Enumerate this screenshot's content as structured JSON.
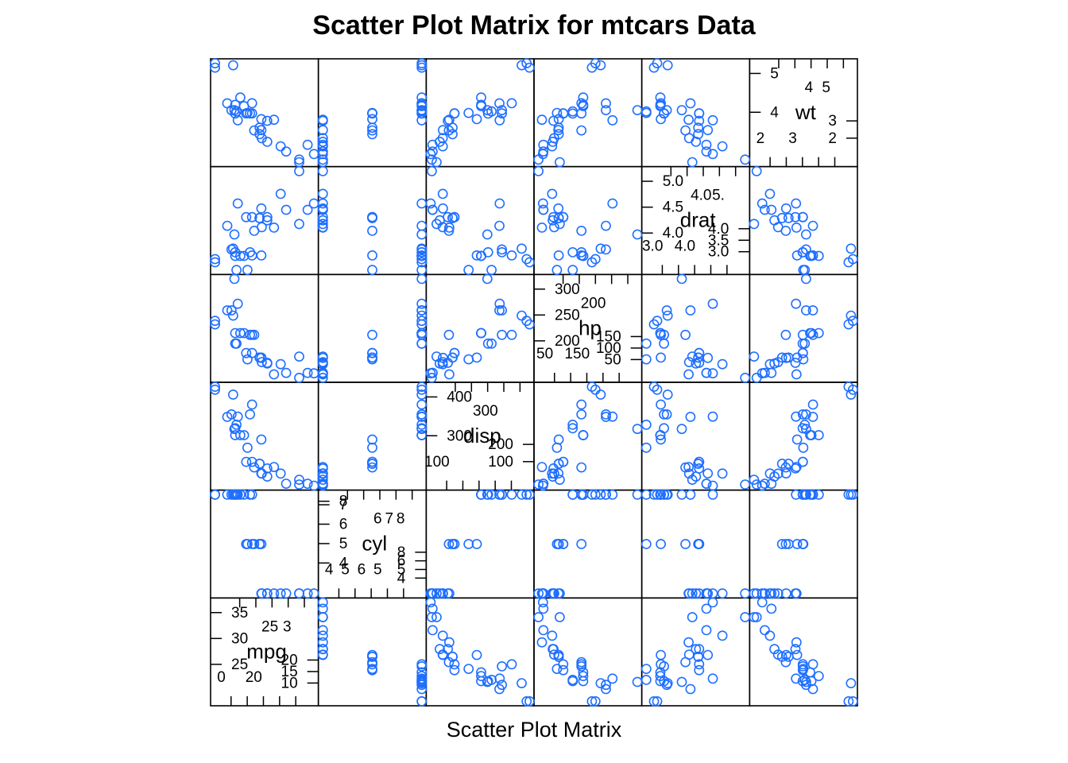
{
  "chart_data": {
    "type": "scatter",
    "matrix_type": "scatter-plot-matrix",
    "title": "Scatter Plot Matrix for mtcars Data",
    "xlabel": "Scatter Plot Matrix",
    "ylabel": "",
    "point_color": "#1f6fff",
    "grid": false,
    "legend": "none",
    "variables": [
      "mpg",
      "cyl",
      "disp",
      "hp",
      "drat",
      "wt"
    ],
    "variable_ranges": {
      "mpg": [
        10.4,
        33.9
      ],
      "cyl": [
        4,
        8
      ],
      "disp": [
        71.1,
        472
      ],
      "hp": [
        52,
        335
      ],
      "drat": [
        2.76,
        4.93
      ],
      "wt": [
        1.513,
        5.424
      ]
    },
    "diagonal_ticks": {
      "mpg": {
        "left": [
          "35",
          "30",
          "25"
        ],
        "bottom": [
          "20",
          "15",
          "10"
        ],
        "top_inner": [
          "25",
          "3"
        ],
        "bottom_inner": [
          "0",
          "20"
        ]
      },
      "cyl": {
        "top": [
          "8"
        ],
        "left": [
          "7",
          "6",
          "5",
          "4"
        ],
        "top_inner": [
          "6",
          "7",
          "8"
        ],
        "right": [
          "8",
          "6",
          "5",
          "4"
        ],
        "bottom_inner": [
          "4",
          "5",
          "6",
          "5"
        ]
      },
      "disp": {
        "left": [
          "400",
          "300"
        ],
        "top_inner": [
          "300"
        ],
        "right": [
          "200",
          "100"
        ],
        "bottom_inner": [
          "100"
        ]
      },
      "hp": {
        "left": [
          "300",
          "250",
          "200"
        ],
        "top_inner": [
          "200"
        ],
        "right": [
          "150",
          "100",
          "50"
        ],
        "bottom_inner": [
          "50",
          "150"
        ]
      },
      "drat": {
        "left": [
          "5.0",
          "4.5",
          "4.0"
        ],
        "top_inner": [
          "4.0",
          "5."
        ],
        "right": [
          "4.0",
          "3.5",
          "3.0"
        ],
        "bottom_inner": [
          "3.0",
          "4.0"
        ]
      },
      "wt": {
        "left": [
          "5",
          "4"
        ],
        "top_inner": [
          "4",
          "5"
        ],
        "right": [
          "3",
          "2"
        ],
        "bottom_inner": [
          "2",
          "3"
        ]
      }
    },
    "observations": [
      {
        "mpg": 21.0,
        "cyl": 6,
        "disp": 160.0,
        "hp": 110,
        "drat": 3.9,
        "wt": 2.62
      },
      {
        "mpg": 21.0,
        "cyl": 6,
        "disp": 160.0,
        "hp": 110,
        "drat": 3.9,
        "wt": 2.875
      },
      {
        "mpg": 22.8,
        "cyl": 4,
        "disp": 108.0,
        "hp": 93,
        "drat": 3.85,
        "wt": 2.32
      },
      {
        "mpg": 21.4,
        "cyl": 6,
        "disp": 258.0,
        "hp": 110,
        "drat": 3.08,
        "wt": 3.215
      },
      {
        "mpg": 18.7,
        "cyl": 8,
        "disp": 360.0,
        "hp": 175,
        "drat": 3.15,
        "wt": 3.44
      },
      {
        "mpg": 18.1,
        "cyl": 6,
        "disp": 225.0,
        "hp": 105,
        "drat": 2.76,
        "wt": 3.46
      },
      {
        "mpg": 14.3,
        "cyl": 8,
        "disp": 360.0,
        "hp": 245,
        "drat": 3.21,
        "wt": 3.57
      },
      {
        "mpg": 24.4,
        "cyl": 4,
        "disp": 146.7,
        "hp": 62,
        "drat": 3.69,
        "wt": 3.19
      },
      {
        "mpg": 22.8,
        "cyl": 4,
        "disp": 140.8,
        "hp": 95,
        "drat": 3.92,
        "wt": 3.15
      },
      {
        "mpg": 19.2,
        "cyl": 6,
        "disp": 167.6,
        "hp": 123,
        "drat": 3.92,
        "wt": 3.44
      },
      {
        "mpg": 17.8,
        "cyl": 6,
        "disp": 167.6,
        "hp": 123,
        "drat": 3.92,
        "wt": 3.44
      },
      {
        "mpg": 16.4,
        "cyl": 8,
        "disp": 275.8,
        "hp": 180,
        "drat": 3.07,
        "wt": 4.07
      },
      {
        "mpg": 17.3,
        "cyl": 8,
        "disp": 275.8,
        "hp": 180,
        "drat": 3.07,
        "wt": 3.73
      },
      {
        "mpg": 15.2,
        "cyl": 8,
        "disp": 275.8,
        "hp": 180,
        "drat": 3.07,
        "wt": 3.78
      },
      {
        "mpg": 10.4,
        "cyl": 8,
        "disp": 472.0,
        "hp": 205,
        "drat": 2.93,
        "wt": 5.25
      },
      {
        "mpg": 10.4,
        "cyl": 8,
        "disp": 460.0,
        "hp": 215,
        "drat": 3.0,
        "wt": 5.424
      },
      {
        "mpg": 14.7,
        "cyl": 8,
        "disp": 440.0,
        "hp": 230,
        "drat": 3.23,
        "wt": 5.345
      },
      {
        "mpg": 32.4,
        "cyl": 4,
        "disp": 78.7,
        "hp": 66,
        "drat": 4.08,
        "wt": 2.2
      },
      {
        "mpg": 30.4,
        "cyl": 4,
        "disp": 75.7,
        "hp": 52,
        "drat": 4.93,
        "wt": 1.615
      },
      {
        "mpg": 33.9,
        "cyl": 4,
        "disp": 71.1,
        "hp": 65,
        "drat": 4.22,
        "wt": 1.835
      },
      {
        "mpg": 21.5,
        "cyl": 4,
        "disp": 120.1,
        "hp": 97,
        "drat": 3.7,
        "wt": 2.465
      },
      {
        "mpg": 15.5,
        "cyl": 8,
        "disp": 318.0,
        "hp": 150,
        "drat": 2.76,
        "wt": 3.52
      },
      {
        "mpg": 15.2,
        "cyl": 8,
        "disp": 304.0,
        "hp": 150,
        "drat": 3.15,
        "wt": 3.435
      },
      {
        "mpg": 13.3,
        "cyl": 8,
        "disp": 350.0,
        "hp": 245,
        "drat": 3.73,
        "wt": 3.84
      },
      {
        "mpg": 19.2,
        "cyl": 8,
        "disp": 400.0,
        "hp": 175,
        "drat": 3.08,
        "wt": 3.845
      },
      {
        "mpg": 27.3,
        "cyl": 4,
        "disp": 79.0,
        "hp": 66,
        "drat": 4.08,
        "wt": 1.935
      },
      {
        "mpg": 26.0,
        "cyl": 4,
        "disp": 120.3,
        "hp": 91,
        "drat": 4.43,
        "wt": 2.14
      },
      {
        "mpg": 30.4,
        "cyl": 4,
        "disp": 95.1,
        "hp": 113,
        "drat": 3.77,
        "wt": 1.513
      },
      {
        "mpg": 15.8,
        "cyl": 8,
        "disp": 351.0,
        "hp": 264,
        "drat": 4.22,
        "wt": 3.17
      },
      {
        "mpg": 19.7,
        "cyl": 6,
        "disp": 145.0,
        "hp": 175,
        "drat": 3.62,
        "wt": 2.77
      },
      {
        "mpg": 15.0,
        "cyl": 8,
        "disp": 301.0,
        "hp": 335,
        "drat": 3.54,
        "wt": 3.57
      },
      {
        "mpg": 21.4,
        "cyl": 4,
        "disp": 121.0,
        "hp": 109,
        "drat": 4.11,
        "wt": 2.78
      }
    ]
  }
}
